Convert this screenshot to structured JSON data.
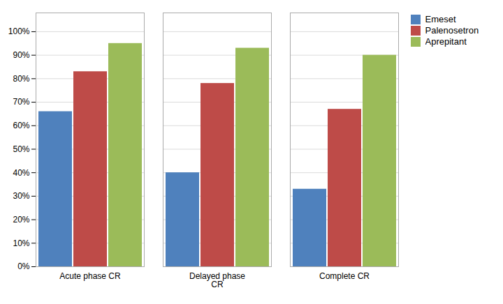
{
  "chart_data": {
    "type": "bar",
    "categories": [
      "Acute phase CR",
      "Delayed phase\nCR",
      "Complete CR"
    ],
    "series": [
      {
        "name": "Emeset",
        "values": [
          0.66,
          0.4,
          0.33
        ],
        "color": "#4F81BD"
      },
      {
        "name": "Palenosetron",
        "values": [
          0.83,
          0.78,
          0.67
        ],
        "color": "#BE4B48"
      },
      {
        "name": "Aprepitant",
        "values": [
          0.95,
          0.93,
          0.9
        ],
        "color": "#9BBB59"
      }
    ],
    "ylim": [
      0,
      1.08
    ],
    "yticks": [
      {
        "value": 0.0,
        "label": "0%"
      },
      {
        "value": 0.1,
        "label": "10%"
      },
      {
        "value": 0.2,
        "label": "20%"
      },
      {
        "value": 0.3,
        "label": "30%"
      },
      {
        "value": 0.4,
        "label": "40%"
      },
      {
        "value": 0.5,
        "label": "50%"
      },
      {
        "value": 0.6,
        "label": "60%"
      },
      {
        "value": 0.7,
        "label": "70%"
      },
      {
        "value": 0.8,
        "label": "80%"
      },
      {
        "value": 0.9,
        "label": "90%"
      },
      {
        "value": 1.0,
        "label": "100%"
      }
    ],
    "grid": true,
    "legend": "right"
  }
}
